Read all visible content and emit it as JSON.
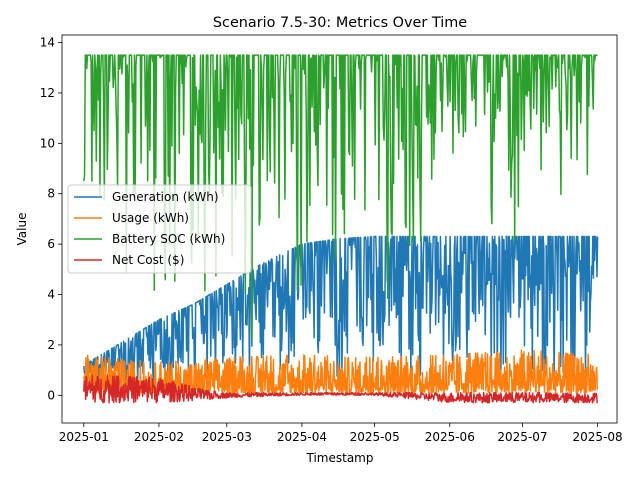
{
  "chart_data": {
    "type": "line",
    "title": "Scenario 7.5-30: Metrics Over Time",
    "xlabel": "Timestamp",
    "ylabel": "Value",
    "x_range": [
      "2024-12-23",
      "2025-08-09"
    ],
    "x_ticks": [
      "2025-01-01",
      "2025-02-01",
      "2025-03-01",
      "2025-04-01",
      "2025-05-01",
      "2025-06-01",
      "2025-07-01",
      "2025-08-01"
    ],
    "x_tick_labels": [
      "2025-01",
      "2025-02",
      "2025-03",
      "2025-04",
      "2025-05",
      "2025-06",
      "2025-07",
      "2025-08"
    ],
    "ylim": [
      -1.1,
      14.3
    ],
    "y_ticks": [
      0,
      2,
      4,
      6,
      8,
      10,
      12,
      14
    ],
    "y_tick_labels": [
      "0",
      "2",
      "4",
      "6",
      "8",
      "10",
      "12",
      "14"
    ],
    "legend_position": "center-left",
    "grid": false,
    "series": [
      {
        "name": "Generation (kWh)",
        "color": "#1f77b4",
        "envelope": [
          {
            "date": "2025-01-01",
            "low": 0.0,
            "high": 1.2
          },
          {
            "date": "2025-01-15",
            "low": 0.0,
            "high": 2.0
          },
          {
            "date": "2025-02-01",
            "low": 0.0,
            "high": 3.0
          },
          {
            "date": "2025-02-15",
            "low": 0.0,
            "high": 3.6
          },
          {
            "date": "2025-03-01",
            "low": 0.0,
            "high": 4.4
          },
          {
            "date": "2025-03-15",
            "low": 0.0,
            "high": 5.2
          },
          {
            "date": "2025-04-01",
            "low": 0.0,
            "high": 6.0
          },
          {
            "date": "2025-04-15",
            "low": 0.0,
            "high": 6.2
          },
          {
            "date": "2025-05-01",
            "low": 0.0,
            "high": 6.3
          },
          {
            "date": "2025-06-01",
            "low": 0.0,
            "high": 6.3
          },
          {
            "date": "2025-07-01",
            "low": 0.0,
            "high": 6.3
          },
          {
            "date": "2025-08-01",
            "low": 0.0,
            "high": 6.3
          }
        ]
      },
      {
        "name": "Usage (kWh)",
        "color": "#ff7f0e",
        "envelope": [
          {
            "date": "2025-01-01",
            "low": 0.1,
            "high": 1.6
          },
          {
            "date": "2025-02-01",
            "low": 0.1,
            "high": 1.3
          },
          {
            "date": "2025-03-01",
            "low": 0.1,
            "high": 1.5
          },
          {
            "date": "2025-04-01",
            "low": 0.1,
            "high": 1.6
          },
          {
            "date": "2025-05-01",
            "low": 0.1,
            "high": 1.5
          },
          {
            "date": "2025-06-01",
            "low": 0.1,
            "high": 1.6
          },
          {
            "date": "2025-07-01",
            "low": 0.1,
            "high": 1.8
          },
          {
            "date": "2025-08-01",
            "low": 0.1,
            "high": 1.6
          }
        ]
      },
      {
        "name": "Battery SOC (kWh)",
        "color": "#2ca02c",
        "envelope": [
          {
            "date": "2025-01-01",
            "low": 0.0,
            "high": 13.5
          },
          {
            "date": "2025-02-01",
            "low": 0.0,
            "high": 13.5
          },
          {
            "date": "2025-03-01",
            "low": 0.5,
            "high": 13.5
          },
          {
            "date": "2025-04-01",
            "low": 1.0,
            "high": 13.5
          },
          {
            "date": "2025-05-01",
            "low": 2.5,
            "high": 13.5
          },
          {
            "date": "2025-06-01",
            "low": 4.0,
            "high": 13.5
          },
          {
            "date": "2025-07-01",
            "low": 5.0,
            "high": 13.5
          },
          {
            "date": "2025-08-01",
            "low": 7.5,
            "high": 13.5
          }
        ]
      },
      {
        "name": "Net Cost ($)",
        "color": "#d62728",
        "envelope": [
          {
            "date": "2025-01-01",
            "low": -0.3,
            "high": 0.8
          },
          {
            "date": "2025-02-01",
            "low": -0.3,
            "high": 0.7
          },
          {
            "date": "2025-02-20",
            "low": -0.2,
            "high": 0.2
          },
          {
            "date": "2025-03-01",
            "low": -0.1,
            "high": 0.1
          },
          {
            "date": "2025-04-01",
            "low": 0.0,
            "high": 0.1
          },
          {
            "date": "2025-05-01",
            "low": 0.0,
            "high": 0.1
          },
          {
            "date": "2025-06-01",
            "low": -0.3,
            "high": 0.1
          },
          {
            "date": "2025-07-01",
            "low": -0.3,
            "high": 0.1
          },
          {
            "date": "2025-08-01",
            "low": -0.3,
            "high": 0.1
          }
        ]
      }
    ]
  }
}
